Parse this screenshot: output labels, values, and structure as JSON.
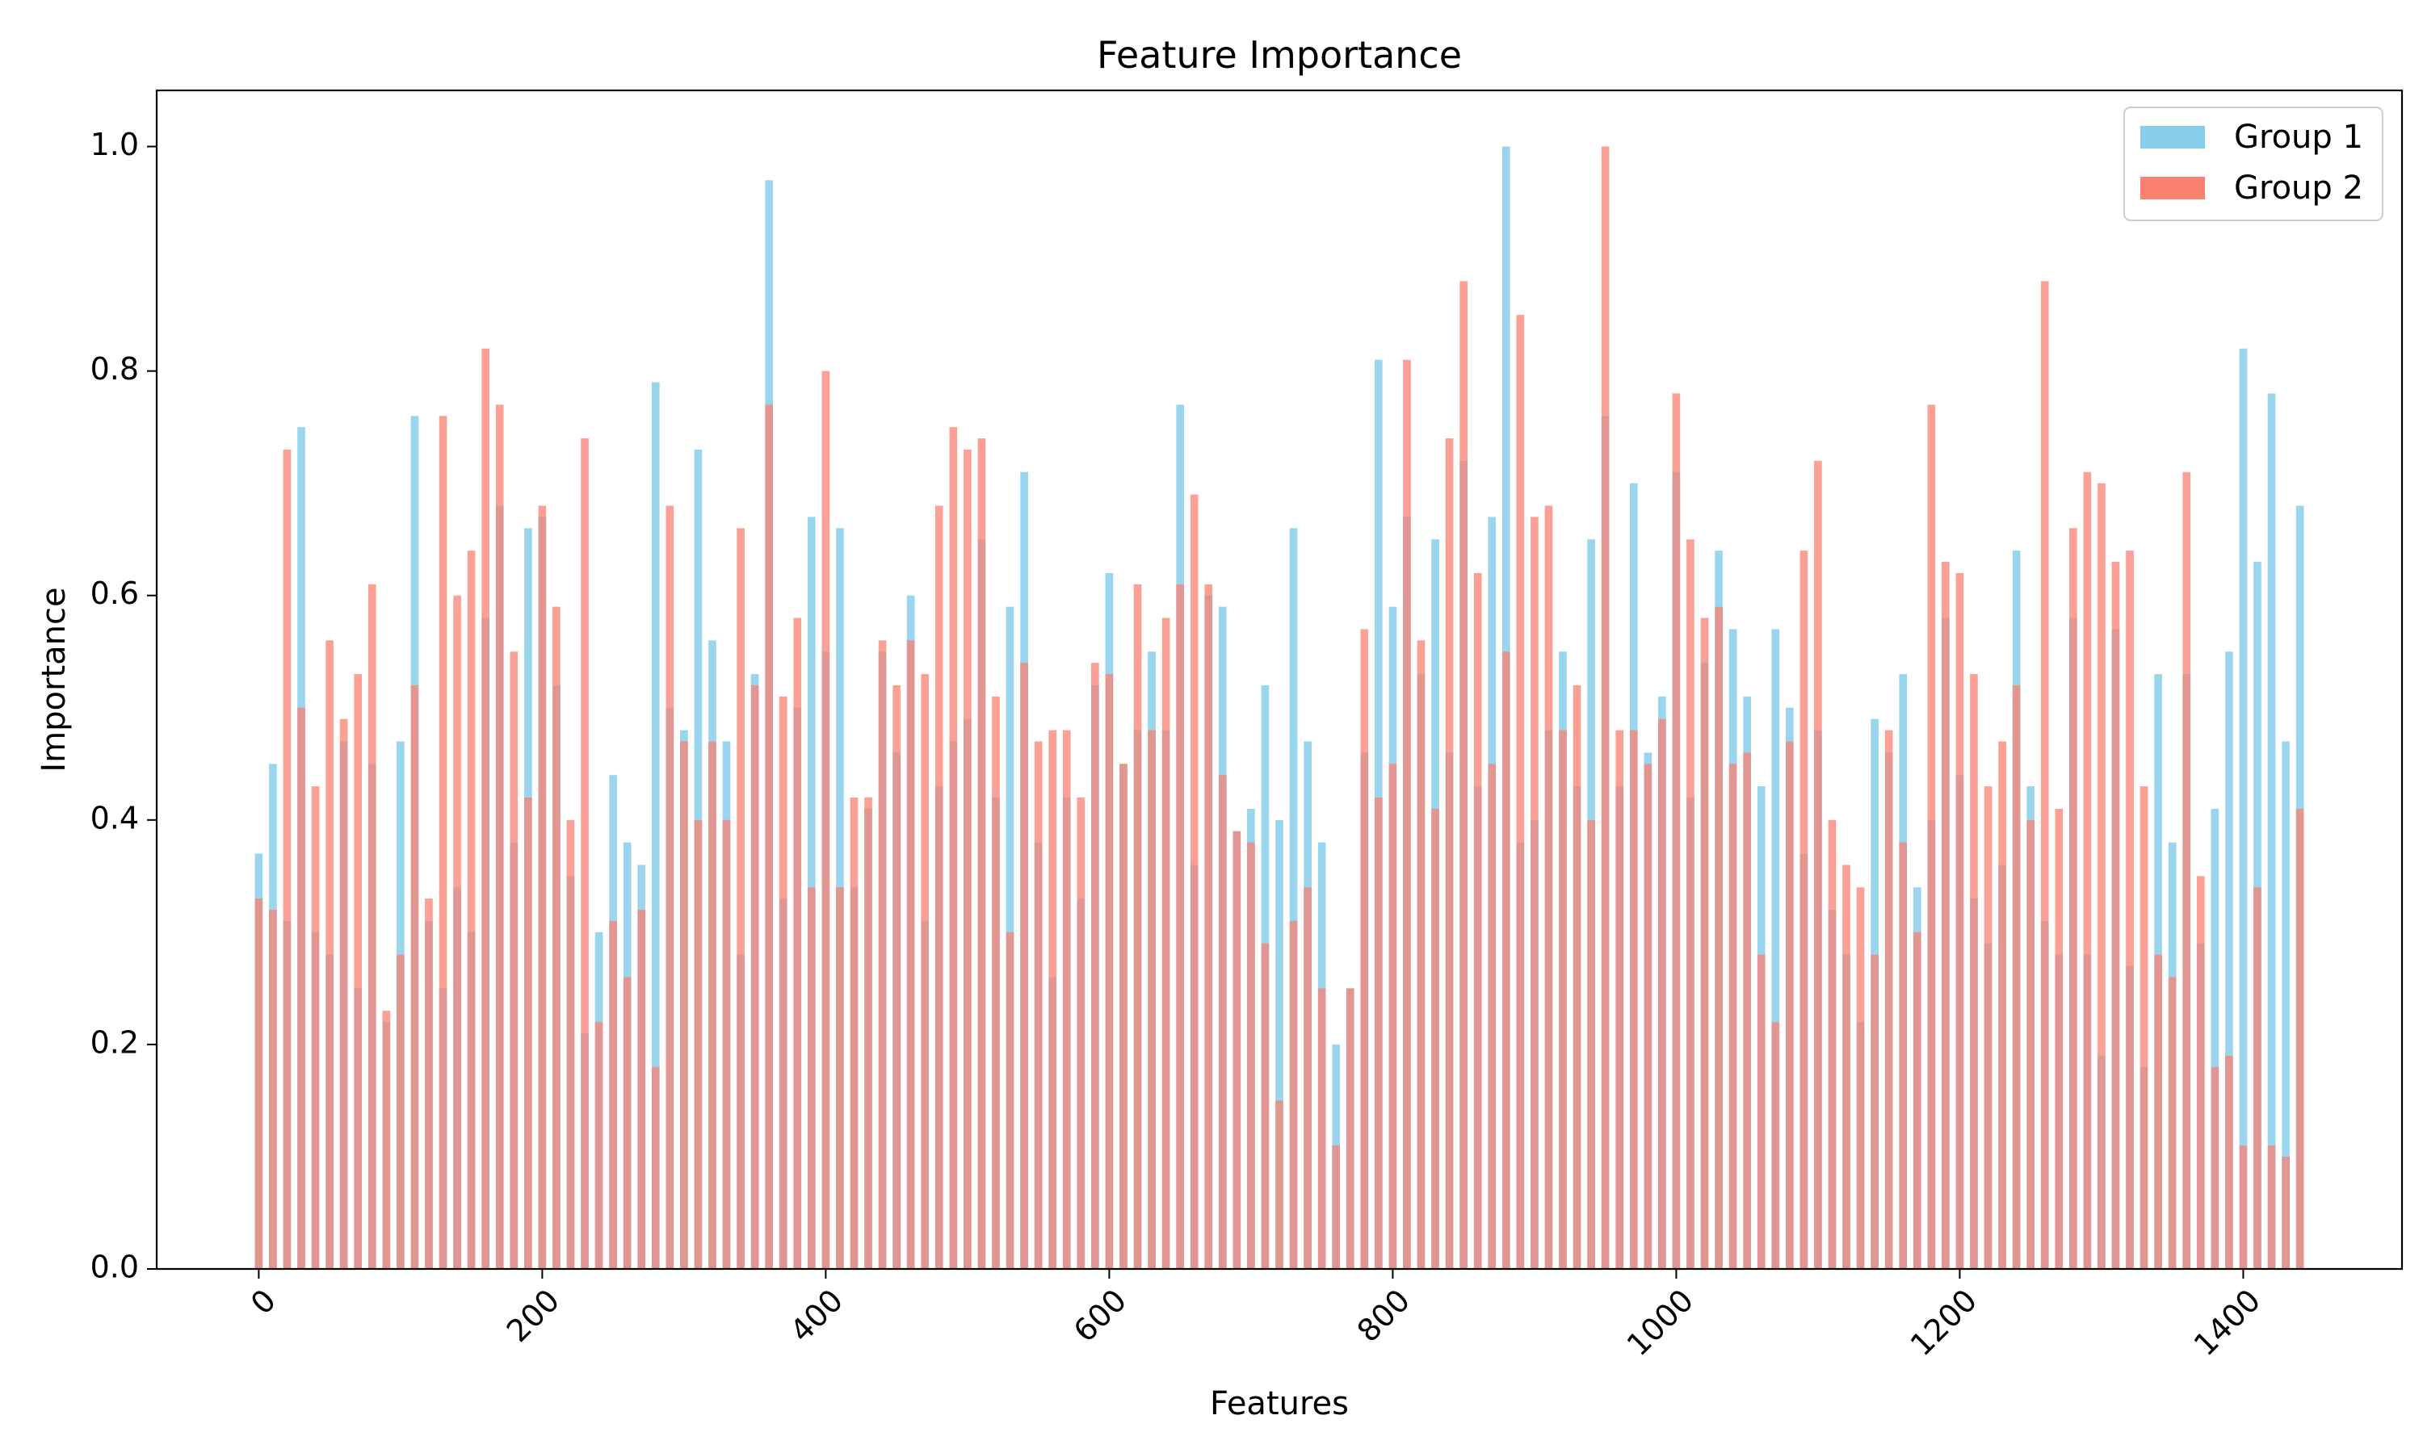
{
  "chart_data": {
    "type": "bar",
    "title": "Feature Importance",
    "xlabel": "Features",
    "ylabel": "Importance",
    "xlim": [
      -72,
      1512
    ],
    "ylim": [
      0.0,
      1.05
    ],
    "xticks": [
      0,
      200,
      400,
      600,
      800,
      1000,
      1200,
      1400
    ],
    "yticks": [
      0.0,
      0.2,
      0.4,
      0.6,
      0.8,
      1.0
    ],
    "xtick_labels": [
      "0",
      "200",
      "400",
      "600",
      "800",
      "1000",
      "1200",
      "1400"
    ],
    "ytick_labels": [
      "0.0",
      "0.2",
      "0.4",
      "0.6",
      "0.8",
      "1.0"
    ],
    "xtick_rotation_deg": 45,
    "grid": false,
    "legend_position": "top-right",
    "x": [
      0,
      10,
      20,
      30,
      40,
      50,
      60,
      70,
      80,
      90,
      100,
      110,
      120,
      130,
      140,
      150,
      160,
      170,
      180,
      190,
      200,
      210,
      220,
      230,
      240,
      250,
      260,
      270,
      280,
      290,
      300,
      310,
      320,
      330,
      340,
      350,
      360,
      370,
      380,
      390,
      400,
      410,
      420,
      430,
      440,
      450,
      460,
      470,
      480,
      490,
      500,
      510,
      520,
      530,
      540,
      550,
      560,
      570,
      580,
      590,
      600,
      610,
      620,
      630,
      640,
      650,
      660,
      670,
      680,
      690,
      700,
      710,
      720,
      730,
      740,
      750,
      760,
      770,
      780,
      790,
      800,
      810,
      820,
      830,
      840,
      850,
      860,
      870,
      880,
      890,
      900,
      910,
      920,
      930,
      940,
      950,
      960,
      970,
      980,
      990,
      1000,
      1010,
      1020,
      1030,
      1040,
      1050,
      1060,
      1070,
      1080,
      1090,
      1100,
      1110,
      1120,
      1130,
      1140,
      1150,
      1160,
      1170,
      1180,
      1190,
      1200,
      1210,
      1220,
      1230,
      1240,
      1250,
      1260,
      1270,
      1280,
      1290,
      1300,
      1310,
      1320,
      1330,
      1340,
      1350,
      1360,
      1370,
      1380,
      1390,
      1400,
      1410,
      1420,
      1430,
      1440
    ],
    "series": [
      {
        "name": "Group 1",
        "color": "#87CEEB",
        "values": [
          0.37,
          0.45,
          0.31,
          0.75,
          0.3,
          0.28,
          0.47,
          0.25,
          0.45,
          0.22,
          0.47,
          0.76,
          0.31,
          0.25,
          0.34,
          0.3,
          0.58,
          0.68,
          0.38,
          0.66,
          0.67,
          0.52,
          0.35,
          0.21,
          0.3,
          0.44,
          0.38,
          0.36,
          0.79,
          0.5,
          0.48,
          0.73,
          0.56,
          0.47,
          0.28,
          0.53,
          0.97,
          0.33,
          0.5,
          0.67,
          0.55,
          0.66,
          0.34,
          0.41,
          0.55,
          0.46,
          0.6,
          0.31,
          0.43,
          0.47,
          0.49,
          0.65,
          0.42,
          0.59,
          0.71,
          0.38,
          0.26,
          0.42,
          0.33,
          0.52,
          0.62,
          0.45,
          0.48,
          0.55,
          0.48,
          0.77,
          0.36,
          0.6,
          0.59,
          0.39,
          0.41,
          0.52,
          0.4,
          0.66,
          0.47,
          0.38,
          0.2,
          0.25,
          0.46,
          0.81,
          0.59,
          0.67,
          0.53,
          0.65,
          0.46,
          0.72,
          0.43,
          0.67,
          1.0,
          0.38,
          0.4,
          0.48,
          0.55,
          0.43,
          0.65,
          0.76,
          0.43,
          0.7,
          0.46,
          0.51,
          0.71,
          0.42,
          0.54,
          0.64,
          0.57,
          0.51,
          0.43,
          0.57,
          0.5,
          0.37,
          0.48,
          0.32,
          0.28,
          0.22,
          0.49,
          0.46,
          0.53,
          0.34,
          0.4,
          0.58,
          0.44,
          0.33,
          0.29,
          0.36,
          0.64,
          0.43,
          0.31,
          0.28,
          0.58,
          0.28,
          0.19,
          0.57,
          0.27,
          0.18,
          0.53,
          0.38,
          0.53,
          0.29,
          0.41,
          0.55,
          0.82,
          0.63,
          0.78,
          0.47,
          0.68
        ]
      },
      {
        "name": "Group 2",
        "color": "#FA8072",
        "values": [
          0.33,
          0.32,
          0.73,
          0.5,
          0.43,
          0.56,
          0.49,
          0.53,
          0.61,
          0.23,
          0.28,
          0.52,
          0.33,
          0.76,
          0.6,
          0.64,
          0.82,
          0.77,
          0.55,
          0.42,
          0.68,
          0.59,
          0.4,
          0.74,
          0.22,
          0.31,
          0.26,
          0.32,
          0.18,
          0.68,
          0.47,
          0.4,
          0.47,
          0.4,
          0.66,
          0.52,
          0.77,
          0.51,
          0.58,
          0.34,
          0.8,
          0.34,
          0.42,
          0.42,
          0.56,
          0.52,
          0.56,
          0.53,
          0.68,
          0.75,
          0.73,
          0.74,
          0.51,
          0.3,
          0.54,
          0.47,
          0.48,
          0.48,
          0.42,
          0.54,
          0.53,
          0.45,
          0.61,
          0.48,
          0.58,
          0.61,
          0.69,
          0.61,
          0.44,
          0.39,
          0.38,
          0.29,
          0.15,
          0.31,
          0.34,
          0.25,
          0.11,
          0.25,
          0.57,
          0.42,
          0.45,
          0.81,
          0.56,
          0.41,
          0.74,
          0.88,
          0.62,
          0.45,
          0.55,
          0.85,
          0.67,
          0.68,
          0.48,
          0.52,
          0.4,
          1.0,
          0.48,
          0.48,
          0.45,
          0.49,
          0.78,
          0.65,
          0.58,
          0.59,
          0.45,
          0.46,
          0.28,
          0.22,
          0.47,
          0.64,
          0.72,
          0.4,
          0.36,
          0.34,
          0.28,
          0.48,
          0.38,
          0.3,
          0.77,
          0.63,
          0.62,
          0.53,
          0.43,
          0.47,
          0.52,
          0.4,
          0.88,
          0.41,
          0.66,
          0.71,
          0.7,
          0.63,
          0.64,
          0.43,
          0.28,
          0.26,
          0.71,
          0.35,
          0.18,
          0.19,
          0.11,
          0.34,
          0.11,
          0.1,
          0.41
        ]
      }
    ]
  }
}
